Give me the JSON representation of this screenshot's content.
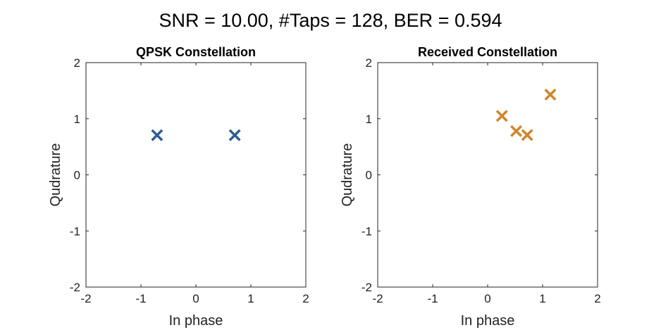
{
  "figure": {
    "title": "SNR = 10.00, #Taps = 128, BER = 0.594"
  },
  "chart_data": [
    {
      "type": "scatter",
      "title": "QPSK Constellation",
      "xlabel": "In phase",
      "ylabel": "Qudrature",
      "xlim": [
        -2,
        2
      ],
      "ylim": [
        -2,
        2
      ],
      "xticks": [
        "-2",
        "-1",
        "0",
        "1",
        "2"
      ],
      "yticks": [
        "-2",
        "-1",
        "0",
        "1",
        "2"
      ],
      "grid": false,
      "marker": "x",
      "color": "#2e5e92",
      "points": [
        {
          "x": -0.707,
          "y": 0.707
        },
        {
          "x": 0.707,
          "y": 0.707
        }
      ]
    },
    {
      "type": "scatter",
      "title": "Received Constellation",
      "xlabel": "In phase",
      "ylabel": "Qudrature",
      "xlim": [
        -2,
        2
      ],
      "ylim": [
        -2,
        2
      ],
      "xticks": [
        "-2",
        "-1",
        "0",
        "1",
        "2"
      ],
      "yticks": [
        "-2",
        "-1",
        "0",
        "1",
        "2"
      ],
      "grid": false,
      "marker": "x",
      "color": "#d0862a",
      "points": [
        {
          "x": 0.26,
          "y": 1.05
        },
        {
          "x": 0.52,
          "y": 0.78
        },
        {
          "x": 0.72,
          "y": 0.71
        },
        {
          "x": 1.14,
          "y": 1.43
        }
      ]
    }
  ]
}
